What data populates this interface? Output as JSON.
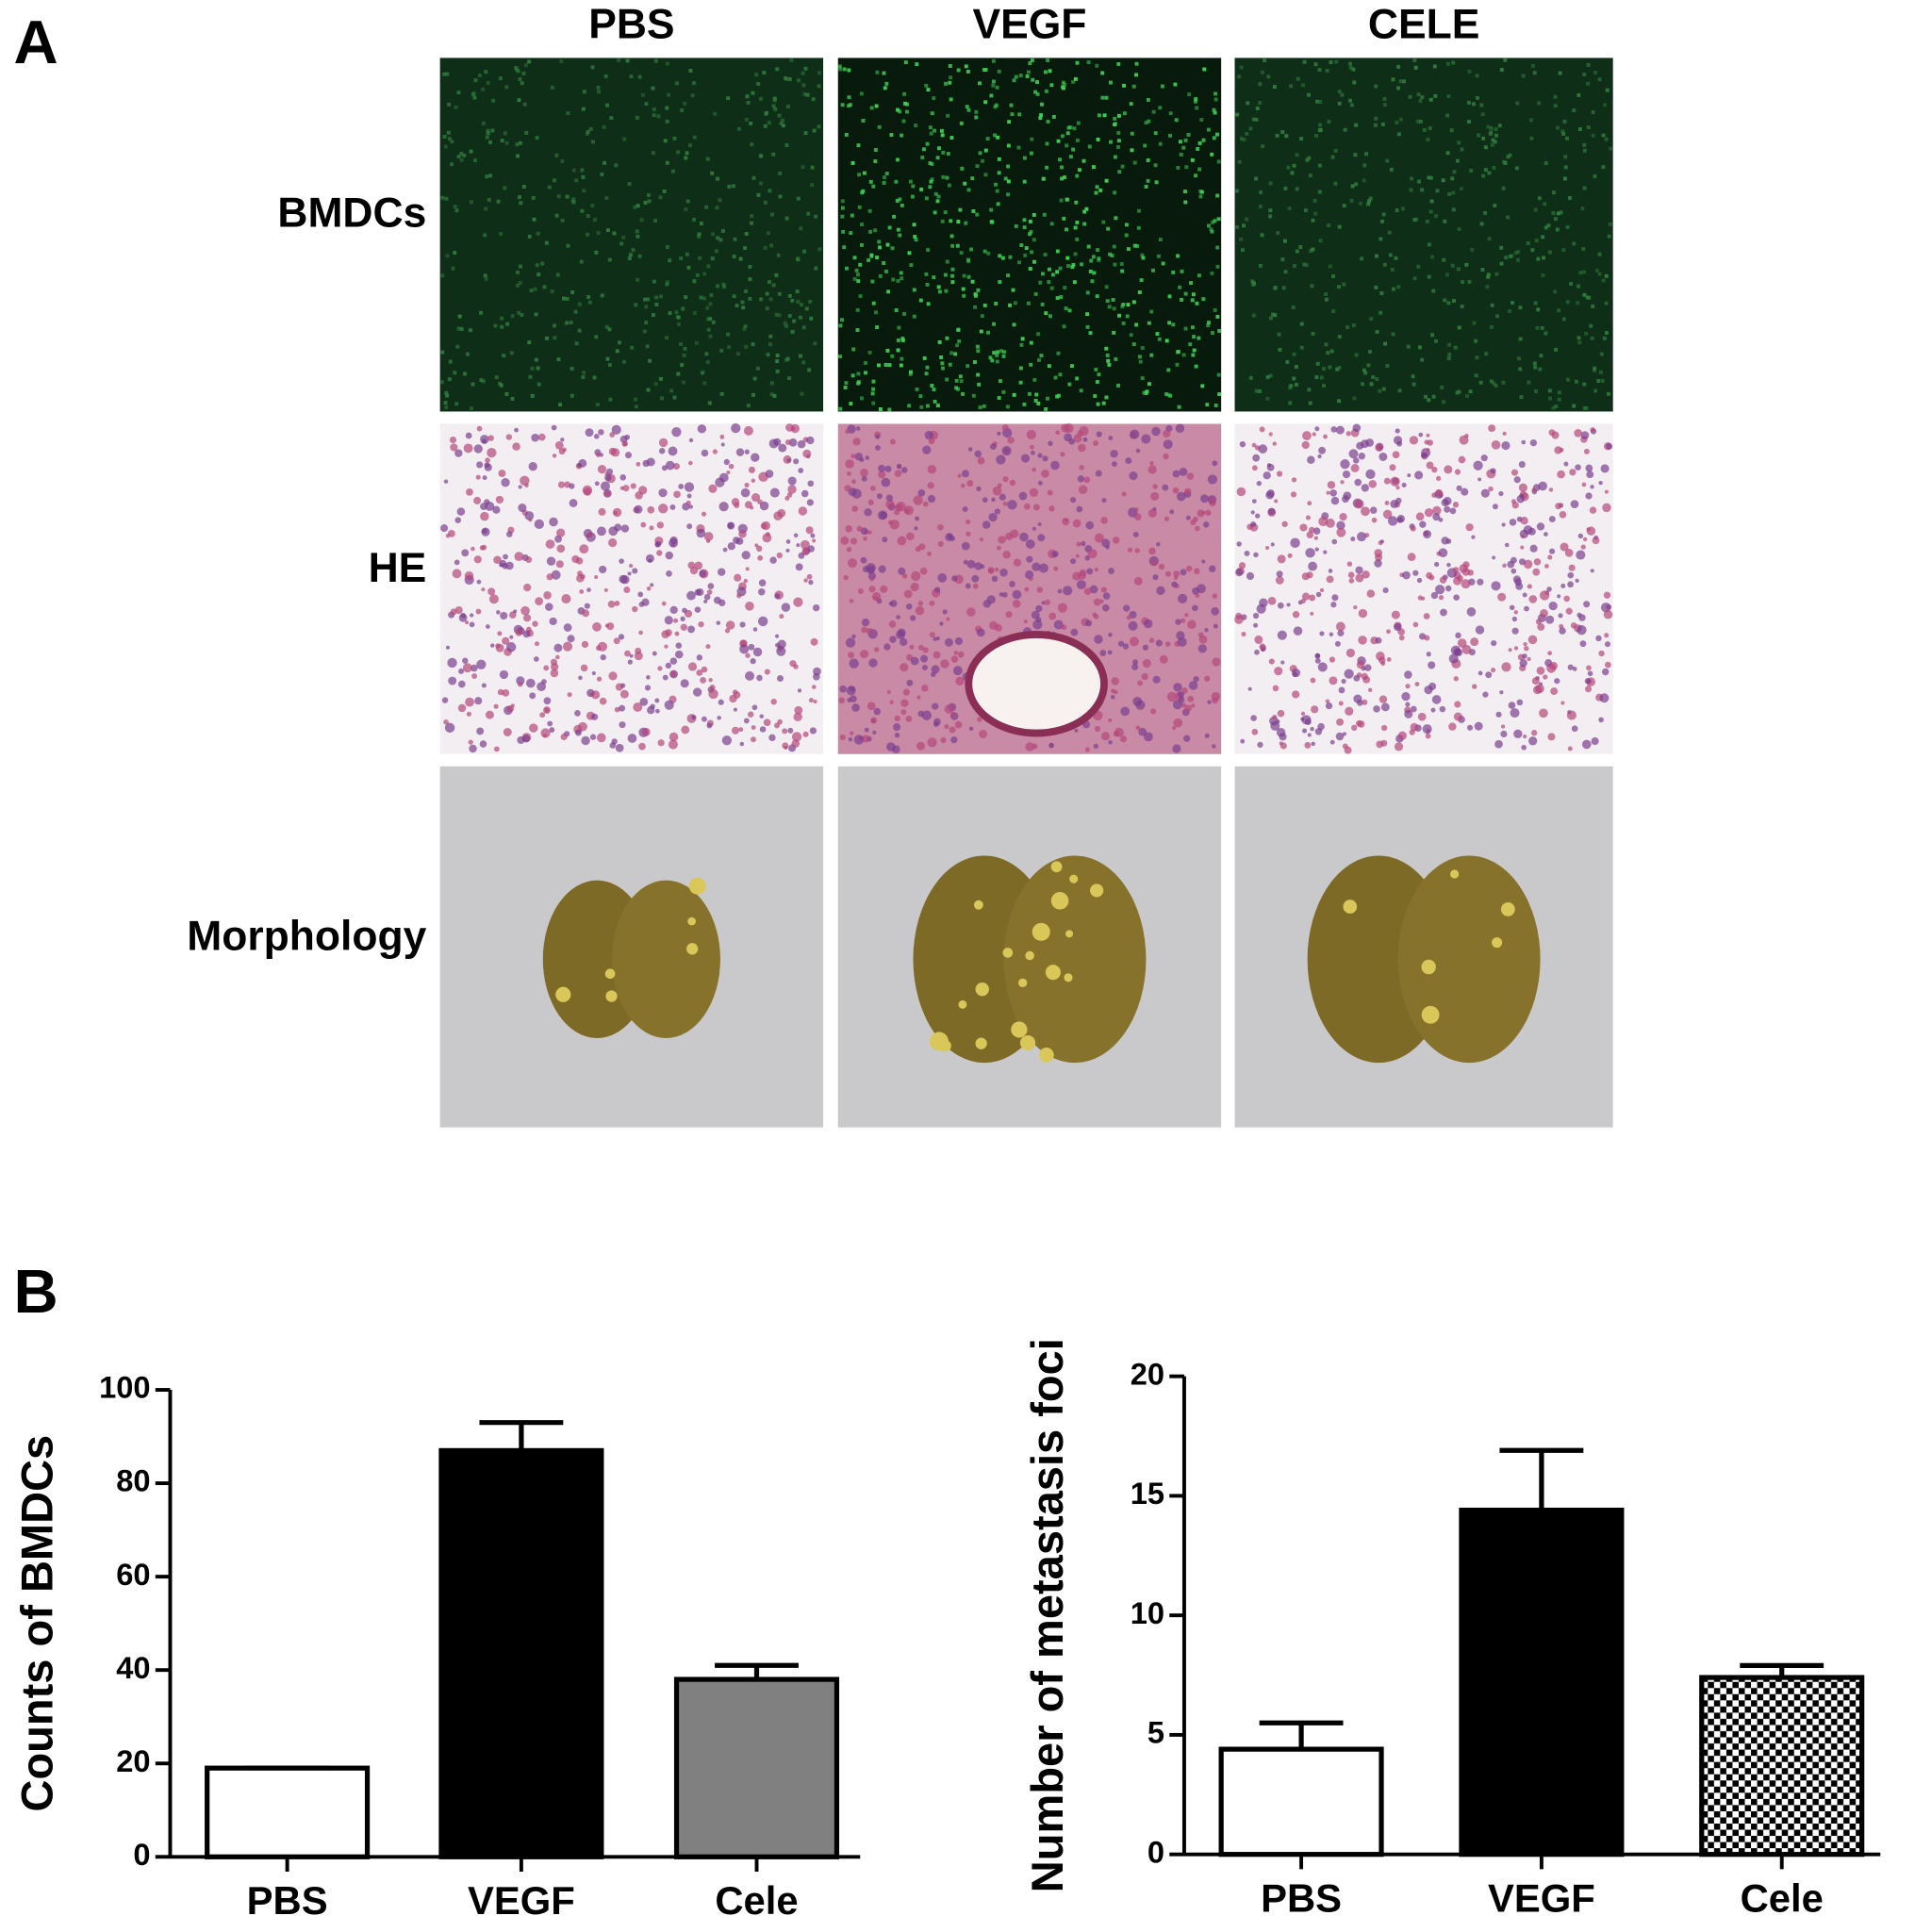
{
  "panel_a": {
    "label": "A",
    "columns": [
      "PBS",
      "VEGF",
      "CELE"
    ],
    "rows": [
      "BMDCs",
      "HE",
      "Morphology"
    ]
  },
  "panel_b": {
    "label": "B"
  },
  "chart_data": [
    {
      "type": "bar",
      "y_label": "Counts of BMDCs",
      "categories": [
        "PBS",
        "VEGF",
        "Cele"
      ],
      "series": [
        {
          "values": [
            19,
            87,
            38
          ],
          "errors": [
            0,
            6,
            3
          ],
          "colors": [
            "#ffffff",
            "#000000",
            "#808080"
          ]
        }
      ],
      "ylim": [
        0,
        100
      ],
      "yticks": [
        0,
        20,
        40,
        60,
        80,
        100
      ]
    },
    {
      "type": "bar",
      "y_label": "Number of metastasis foci",
      "categories": [
        "PBS",
        "VEGF",
        "Cele"
      ],
      "series": [
        {
          "values": [
            4.4,
            14.4,
            7.4
          ],
          "errors": [
            1.1,
            2.5,
            0.5
          ],
          "colors": [
            "#ffffff",
            "#000000",
            "#000000"
          ],
          "patterns": [
            null,
            null,
            "checkerboard"
          ]
        }
      ],
      "ylim": [
        0,
        20
      ],
      "yticks": [
        0,
        5,
        10,
        15,
        20
      ]
    }
  ]
}
